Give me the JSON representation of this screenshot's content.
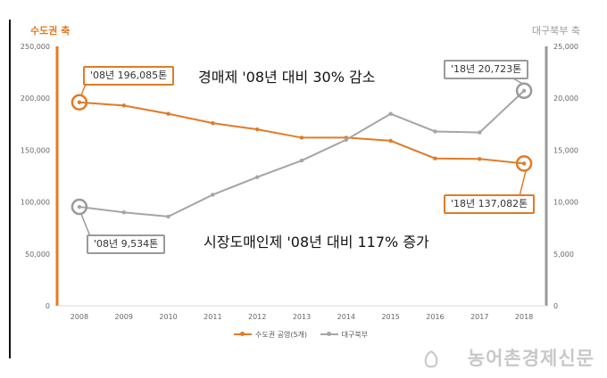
{
  "axis_titles": {
    "left": "수도권 축",
    "right": "대구북부 축"
  },
  "annotations": {
    "top_left": "'08년 196,085톤",
    "top_right": "'18년 20,723톤",
    "bottom_left": "'08년 9,534톤",
    "bottom_right": "'18년 137,082톤"
  },
  "big_texts": {
    "decrease": "경매제 '08년 대비 30% 감소",
    "increase": "시장도매인제 '08년 대비 117% 증가"
  },
  "watermark": "농어촌경제신문",
  "colors": {
    "series1": "#e07b26",
    "series2": "#a5a5a5",
    "axis_left": "#e07b26",
    "axis_right": "#9a9a9a"
  },
  "chart_data": {
    "type": "line",
    "x": [
      "2008",
      "2009",
      "2010",
      "2011",
      "2012",
      "2013",
      "2014",
      "2015",
      "2016",
      "2017",
      "2018"
    ],
    "y_left": {
      "ticks": [
        "0",
        "50,000",
        "100,000",
        "150,000",
        "200,000",
        "250,000"
      ],
      "ylim": [
        0,
        250000
      ]
    },
    "y_right": {
      "ticks": [
        "0",
        "5,000",
        "10,000",
        "15,000",
        "20,000",
        "25,000"
      ],
      "ylim": [
        0,
        25000
      ]
    },
    "series": [
      {
        "name": "수도권 공영(5개)",
        "axis": "left",
        "values": [
          196085,
          193000,
          185000,
          176000,
          170000,
          162000,
          162000,
          159000,
          142000,
          141500,
          137082
        ]
      },
      {
        "name": "대구북부",
        "axis": "right",
        "values": [
          9534,
          9000,
          8600,
          10700,
          12400,
          14000,
          16000,
          18500,
          16800,
          16700,
          20723
        ]
      }
    ],
    "legend_position": "bottom"
  }
}
